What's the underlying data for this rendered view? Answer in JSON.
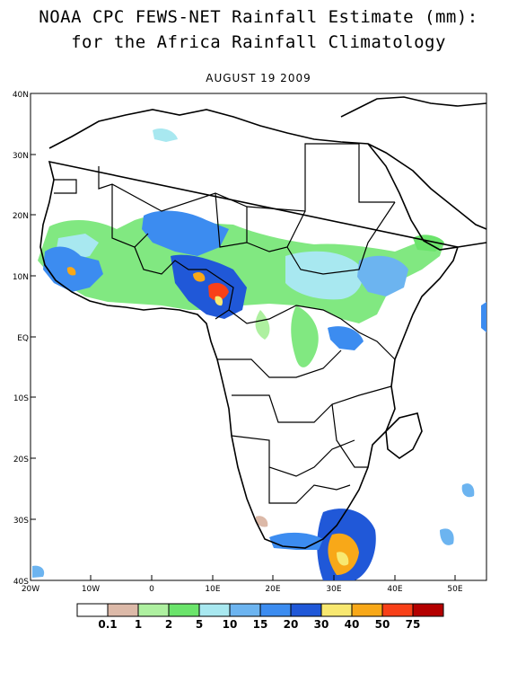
{
  "title_line1": "NOAA CPC FEWS-NET Rainfall Estimate (mm):",
  "title_line2": "for the Africa Rainfall Climatology",
  "date": "AUGUST 19 2009",
  "lat_labels": [
    "40N",
    "30N",
    "20N",
    "10N",
    "EQ",
    "10S",
    "20S",
    "30S",
    "40S"
  ],
  "lon_labels": [
    "20W",
    "10W",
    "0",
    "10E",
    "20E",
    "30E",
    "40E",
    "50E"
  ],
  "legend": {
    "labels": [
      "0.1",
      "1",
      "2",
      "5",
      "10",
      "15",
      "20",
      "30",
      "40",
      "50",
      "75"
    ],
    "colors": [
      "#ffffff",
      "#dcb9a8",
      "#aef0a0",
      "#6be46b",
      "#a8e8f0",
      "#6cb4f0",
      "#3c8cf0",
      "#2058d8",
      "#f8e870",
      "#f8a818",
      "#f84018",
      "#b40000"
    ]
  }
}
